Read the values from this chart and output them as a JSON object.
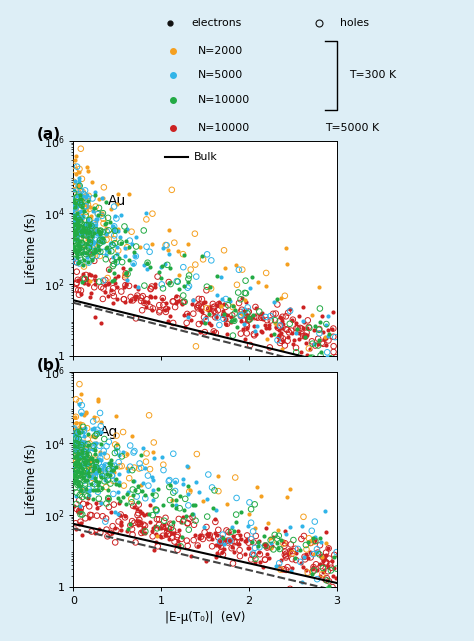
{
  "background_color": "#ddeef6",
  "panel_bg": "#ffffff",
  "title_a": "Au",
  "title_b": "Ag",
  "xlabel": "|E-μ(T₀)|  (eV)",
  "ylabel": "Lifetime (fs)",
  "xlim": [
    0,
    3
  ],
  "colors": {
    "N2000": "#f5a020",
    "N5000": "#30b4e8",
    "N10000_300K": "#22aa44",
    "N10000_5000K": "#cc2222",
    "bulk_solid": "#000000",
    "bulk_dashed": "#444444"
  },
  "au_params": {
    "intercept_2000": 4.3,
    "intercept_5000": 3.85,
    "intercept_10000": 3.55,
    "intercept_red": 2.05,
    "slope_300K": 1.2,
    "slope_5000K": 0.55,
    "bulk_solid_intercept": 1.55,
    "bulk_solid_slope": 0.6,
    "bulk_dashed_intercept": 1.48,
    "bulk_dashed_slope": 0.63
  },
  "ag_params": {
    "intercept_2000": 4.1,
    "intercept_5000": 3.75,
    "intercept_10000": 3.45,
    "intercept_red": 2.1,
    "slope_300K": 1.0,
    "slope_5000K": 0.5,
    "bulk_solid_intercept": 1.75,
    "bulk_solid_slope": 0.55,
    "bulk_dashed_intercept": 1.62,
    "bulk_dashed_slope": 0.58
  }
}
